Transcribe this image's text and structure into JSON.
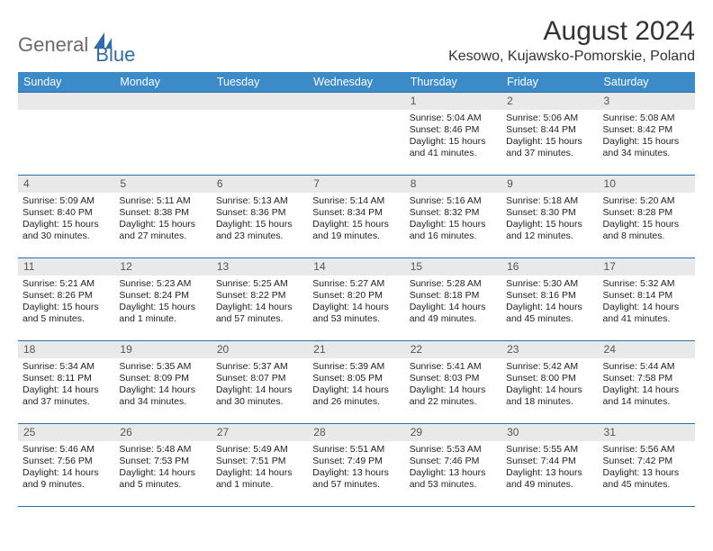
{
  "logo": {
    "text1": "General",
    "text2": "Blue"
  },
  "title": "August 2024",
  "location": "Kesowo, Kujawsko-Pomorskie, Poland",
  "colors": {
    "header_bg": "#3b8bc9",
    "border": "#2f6da8",
    "daynum_bg": "#e9e9e9",
    "logo_gray": "#6b6b6b",
    "logo_blue": "#2f6da8"
  },
  "day_headers": [
    "Sunday",
    "Monday",
    "Tuesday",
    "Wednesday",
    "Thursday",
    "Friday",
    "Saturday"
  ],
  "weeks": [
    [
      {
        "n": "",
        "sr": "",
        "ss": "",
        "dl": ""
      },
      {
        "n": "",
        "sr": "",
        "ss": "",
        "dl": ""
      },
      {
        "n": "",
        "sr": "",
        "ss": "",
        "dl": ""
      },
      {
        "n": "",
        "sr": "",
        "ss": "",
        "dl": ""
      },
      {
        "n": "1",
        "sr": "Sunrise: 5:04 AM",
        "ss": "Sunset: 8:46 PM",
        "dl": "Daylight: 15 hours and 41 minutes."
      },
      {
        "n": "2",
        "sr": "Sunrise: 5:06 AM",
        "ss": "Sunset: 8:44 PM",
        "dl": "Daylight: 15 hours and 37 minutes."
      },
      {
        "n": "3",
        "sr": "Sunrise: 5:08 AM",
        "ss": "Sunset: 8:42 PM",
        "dl": "Daylight: 15 hours and 34 minutes."
      }
    ],
    [
      {
        "n": "4",
        "sr": "Sunrise: 5:09 AM",
        "ss": "Sunset: 8:40 PM",
        "dl": "Daylight: 15 hours and 30 minutes."
      },
      {
        "n": "5",
        "sr": "Sunrise: 5:11 AM",
        "ss": "Sunset: 8:38 PM",
        "dl": "Daylight: 15 hours and 27 minutes."
      },
      {
        "n": "6",
        "sr": "Sunrise: 5:13 AM",
        "ss": "Sunset: 8:36 PM",
        "dl": "Daylight: 15 hours and 23 minutes."
      },
      {
        "n": "7",
        "sr": "Sunrise: 5:14 AM",
        "ss": "Sunset: 8:34 PM",
        "dl": "Daylight: 15 hours and 19 minutes."
      },
      {
        "n": "8",
        "sr": "Sunrise: 5:16 AM",
        "ss": "Sunset: 8:32 PM",
        "dl": "Daylight: 15 hours and 16 minutes."
      },
      {
        "n": "9",
        "sr": "Sunrise: 5:18 AM",
        "ss": "Sunset: 8:30 PM",
        "dl": "Daylight: 15 hours and 12 minutes."
      },
      {
        "n": "10",
        "sr": "Sunrise: 5:20 AM",
        "ss": "Sunset: 8:28 PM",
        "dl": "Daylight: 15 hours and 8 minutes."
      }
    ],
    [
      {
        "n": "11",
        "sr": "Sunrise: 5:21 AM",
        "ss": "Sunset: 8:26 PM",
        "dl": "Daylight: 15 hours and 5 minutes."
      },
      {
        "n": "12",
        "sr": "Sunrise: 5:23 AM",
        "ss": "Sunset: 8:24 PM",
        "dl": "Daylight: 15 hours and 1 minute."
      },
      {
        "n": "13",
        "sr": "Sunrise: 5:25 AM",
        "ss": "Sunset: 8:22 PM",
        "dl": "Daylight: 14 hours and 57 minutes."
      },
      {
        "n": "14",
        "sr": "Sunrise: 5:27 AM",
        "ss": "Sunset: 8:20 PM",
        "dl": "Daylight: 14 hours and 53 minutes."
      },
      {
        "n": "15",
        "sr": "Sunrise: 5:28 AM",
        "ss": "Sunset: 8:18 PM",
        "dl": "Daylight: 14 hours and 49 minutes."
      },
      {
        "n": "16",
        "sr": "Sunrise: 5:30 AM",
        "ss": "Sunset: 8:16 PM",
        "dl": "Daylight: 14 hours and 45 minutes."
      },
      {
        "n": "17",
        "sr": "Sunrise: 5:32 AM",
        "ss": "Sunset: 8:14 PM",
        "dl": "Daylight: 14 hours and 41 minutes."
      }
    ],
    [
      {
        "n": "18",
        "sr": "Sunrise: 5:34 AM",
        "ss": "Sunset: 8:11 PM",
        "dl": "Daylight: 14 hours and 37 minutes."
      },
      {
        "n": "19",
        "sr": "Sunrise: 5:35 AM",
        "ss": "Sunset: 8:09 PM",
        "dl": "Daylight: 14 hours and 34 minutes."
      },
      {
        "n": "20",
        "sr": "Sunrise: 5:37 AM",
        "ss": "Sunset: 8:07 PM",
        "dl": "Daylight: 14 hours and 30 minutes."
      },
      {
        "n": "21",
        "sr": "Sunrise: 5:39 AM",
        "ss": "Sunset: 8:05 PM",
        "dl": "Daylight: 14 hours and 26 minutes."
      },
      {
        "n": "22",
        "sr": "Sunrise: 5:41 AM",
        "ss": "Sunset: 8:03 PM",
        "dl": "Daylight: 14 hours and 22 minutes."
      },
      {
        "n": "23",
        "sr": "Sunrise: 5:42 AM",
        "ss": "Sunset: 8:00 PM",
        "dl": "Daylight: 14 hours and 18 minutes."
      },
      {
        "n": "24",
        "sr": "Sunrise: 5:44 AM",
        "ss": "Sunset: 7:58 PM",
        "dl": "Daylight: 14 hours and 14 minutes."
      }
    ],
    [
      {
        "n": "25",
        "sr": "Sunrise: 5:46 AM",
        "ss": "Sunset: 7:56 PM",
        "dl": "Daylight: 14 hours and 9 minutes."
      },
      {
        "n": "26",
        "sr": "Sunrise: 5:48 AM",
        "ss": "Sunset: 7:53 PM",
        "dl": "Daylight: 14 hours and 5 minutes."
      },
      {
        "n": "27",
        "sr": "Sunrise: 5:49 AM",
        "ss": "Sunset: 7:51 PM",
        "dl": "Daylight: 14 hours and 1 minute."
      },
      {
        "n": "28",
        "sr": "Sunrise: 5:51 AM",
        "ss": "Sunset: 7:49 PM",
        "dl": "Daylight: 13 hours and 57 minutes."
      },
      {
        "n": "29",
        "sr": "Sunrise: 5:53 AM",
        "ss": "Sunset: 7:46 PM",
        "dl": "Daylight: 13 hours and 53 minutes."
      },
      {
        "n": "30",
        "sr": "Sunrise: 5:55 AM",
        "ss": "Sunset: 7:44 PM",
        "dl": "Daylight: 13 hours and 49 minutes."
      },
      {
        "n": "31",
        "sr": "Sunrise: 5:56 AM",
        "ss": "Sunset: 7:42 PM",
        "dl": "Daylight: 13 hours and 45 minutes."
      }
    ]
  ]
}
